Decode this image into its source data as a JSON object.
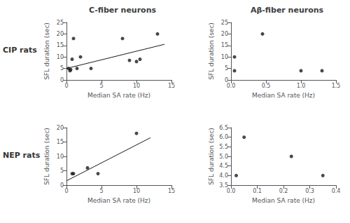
{
  "chart_data": [
    {
      "type": "scatter",
      "title": "C-fiber neurons",
      "annotations": [
        "CIP rats"
      ],
      "xlabel": "Median SA rate (Hz)",
      "ylabel": "SFL duration (sec)",
      "series": [
        {
          "type": "scatter",
          "color": "#1a1a1a",
          "x": [
            0.3,
            0.5,
            0.6,
            0.8,
            1.0,
            1.5,
            2.0,
            3.5,
            8.0,
            9.0,
            10.0,
            10.5,
            13.0
          ],
          "values": [
            5.0,
            4.0,
            4.5,
            9.0,
            18.0,
            5.0,
            10.0,
            5.0,
            18.0,
            8.5,
            8.0,
            9.0,
            20.0
          ]
        },
        {
          "type": "line",
          "color": "#1a1a1a",
          "x": [
            0,
            14
          ],
          "values": [
            5.0,
            15.5
          ]
        }
      ],
      "xlim": [
        0,
        15
      ],
      "ylim": [
        0,
        25
      ],
      "xticks": [
        0,
        5,
        10,
        15
      ],
      "yticks": [
        0,
        5,
        10,
        15,
        20,
        25
      ],
      "grid": false
    },
    {
      "type": "scatter",
      "title": "Aβ-fiber neurons",
      "xlabel": "Median SA rate (Hz)",
      "ylabel": "SFL duration (sec)",
      "series": [
        {
          "type": "scatter",
          "color": "#1a1a1a",
          "x": [
            0.05,
            0.05,
            0.45,
            1.0,
            1.3
          ],
          "values": [
            4.0,
            10.0,
            20.0,
            4.0,
            4.0
          ]
        }
      ],
      "xlim": [
        0.0,
        1.5
      ],
      "ylim": [
        0,
        25
      ],
      "xticks": [
        {
          "value": 0.0,
          "label": "0.0"
        },
        0.5,
        {
          "value": 1.0,
          "label": "1.0"
        },
        1.5
      ],
      "yticks": [
        0,
        5,
        10,
        15,
        20,
        25
      ],
      "grid": false
    },
    {
      "type": "scatter",
      "annotations": [
        "NEP rats"
      ],
      "xlabel": "Median SA rate (Hz)",
      "ylabel": "SFL duration (sec)",
      "series": [
        {
          "type": "scatter",
          "color": "#1a1a1a",
          "x": [
            0.8,
            1.0,
            3.0,
            4.5,
            10.0
          ],
          "values": [
            4.0,
            4.0,
            6.0,
            4.0,
            18.0
          ]
        },
        {
          "type": "line",
          "color": "#1a1a1a",
          "x": [
            0,
            12
          ],
          "values": [
            1.5,
            16.5
          ]
        }
      ],
      "xlim": [
        0,
        15
      ],
      "ylim": [
        0,
        20
      ],
      "xticks": [
        0,
        5,
        10,
        15
      ],
      "yticks": [
        0,
        5,
        10,
        15,
        20
      ],
      "grid": false
    },
    {
      "type": "scatter",
      "xlabel": "Median SA rate (Hz)",
      "ylabel": "SFL duration (sec)",
      "series": [
        {
          "type": "scatter",
          "color": "#1a1a1a",
          "x": [
            0.02,
            0.05,
            0.23,
            0.35
          ],
          "values": [
            4.0,
            6.0,
            5.0,
            4.0
          ]
        }
      ],
      "xlim": [
        0.0,
        0.4
      ],
      "ylim": [
        3.5,
        6.5
      ],
      "xticks": [
        {
          "value": 0.0,
          "label": "0.0"
        },
        0.1,
        0.2,
        0.3,
        0.4
      ],
      "yticks": [
        3.5,
        {
          "value": 4.0,
          "label": "4.0"
        },
        4.5,
        {
          "value": 5.0,
          "label": "5.0"
        },
        5.5,
        {
          "value": 6.0,
          "label": "6.0"
        },
        6.5
      ],
      "grid": false
    }
  ]
}
